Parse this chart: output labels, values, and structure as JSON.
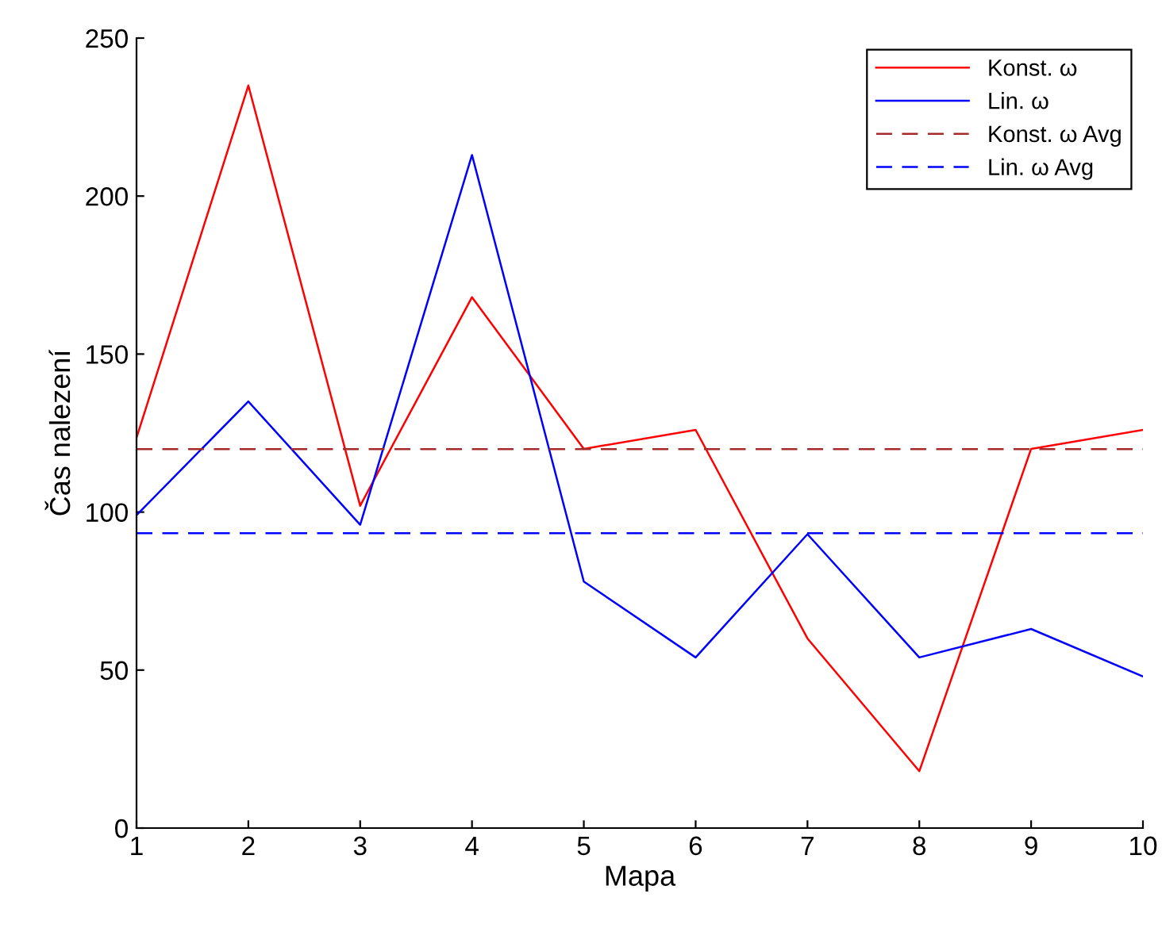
{
  "chart_data": {
    "type": "line",
    "xlabel": "Mapa",
    "ylabel": "Čas nalezení",
    "x": [
      1,
      2,
      3,
      4,
      5,
      6,
      7,
      8,
      9,
      10
    ],
    "series": [
      {
        "name": "Konst. ω",
        "color": "#ff0000",
        "values": [
          123.5,
          235,
          102,
          168,
          120,
          126,
          60,
          18,
          120,
          126
        ]
      },
      {
        "name": "Lin. ω",
        "color": "#0000ff",
        "values": [
          99,
          135,
          96,
          213,
          78,
          54,
          93,
          54,
          63,
          48
        ]
      }
    ],
    "ref_lines": [
      {
        "axis": "y",
        "value": 119.9,
        "label": "Konst. ω Avg",
        "color": "#a52a2a",
        "line_style": "dashed"
      },
      {
        "axis": "y",
        "value": 93.3,
        "label": "Lin. ω Avg",
        "color": "#0000ff",
        "line_style": "dashed"
      }
    ],
    "xlim": [
      1,
      10
    ],
    "xticks": [
      1,
      2,
      3,
      4,
      5,
      6,
      7,
      8,
      9,
      10
    ],
    "ylim": [
      0,
      250
    ],
    "yticks": [
      0,
      50,
      100,
      150,
      200,
      250
    ],
    "grid": false,
    "legend": "top right",
    "marker": "none",
    "line_style": "solid"
  }
}
